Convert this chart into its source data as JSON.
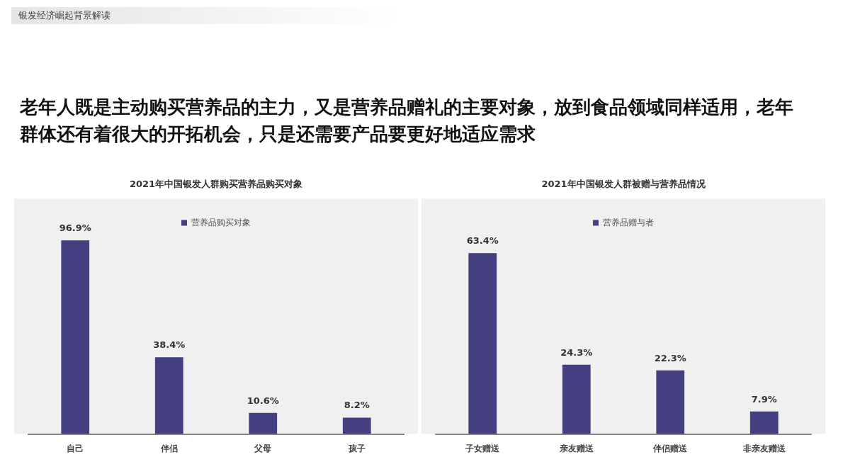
{
  "chart_data": [
    {
      "type": "bar",
      "title": "2021年中国银发人群购买营养品购买对象",
      "annotations": [
        "银发经济崛起背景解读",
        "老年人既是主动购买营养品的主力，又是营养品赠礼的主要对象，放到食品领域同样适用，老年群体还有着很大的开拓机会，只是还需要产品要更好地适应需求"
      ],
      "categories": [
        "自己",
        "伴侣",
        "父母",
        "孩子"
      ],
      "series": [
        {
          "name": "营养品购买对象",
          "color": "#433f80",
          "values": [
            96.9,
            38.4,
            10.6,
            8.2
          ],
          "value_labels": [
            "96.9%",
            "38.4%",
            "10.6%",
            "8.2%"
          ]
        }
      ],
      "legend": "top"
    },
    {
      "type": "bar",
      "title": "2021年中国银发人群被赠与营养品情况",
      "categories": [
        "子女赠送",
        "亲友赠送",
        "伴侣赠送",
        "非亲友赠送"
      ],
      "series": [
        {
          "name": "营养品赠与者",
          "color": "#433f80",
          "values": [
            63.4,
            24.3,
            22.3,
            7.9
          ],
          "value_labels": [
            "63.4%",
            "24.3%",
            "22.3%",
            "7.9%"
          ]
        }
      ],
      "legend": "top"
    }
  ]
}
